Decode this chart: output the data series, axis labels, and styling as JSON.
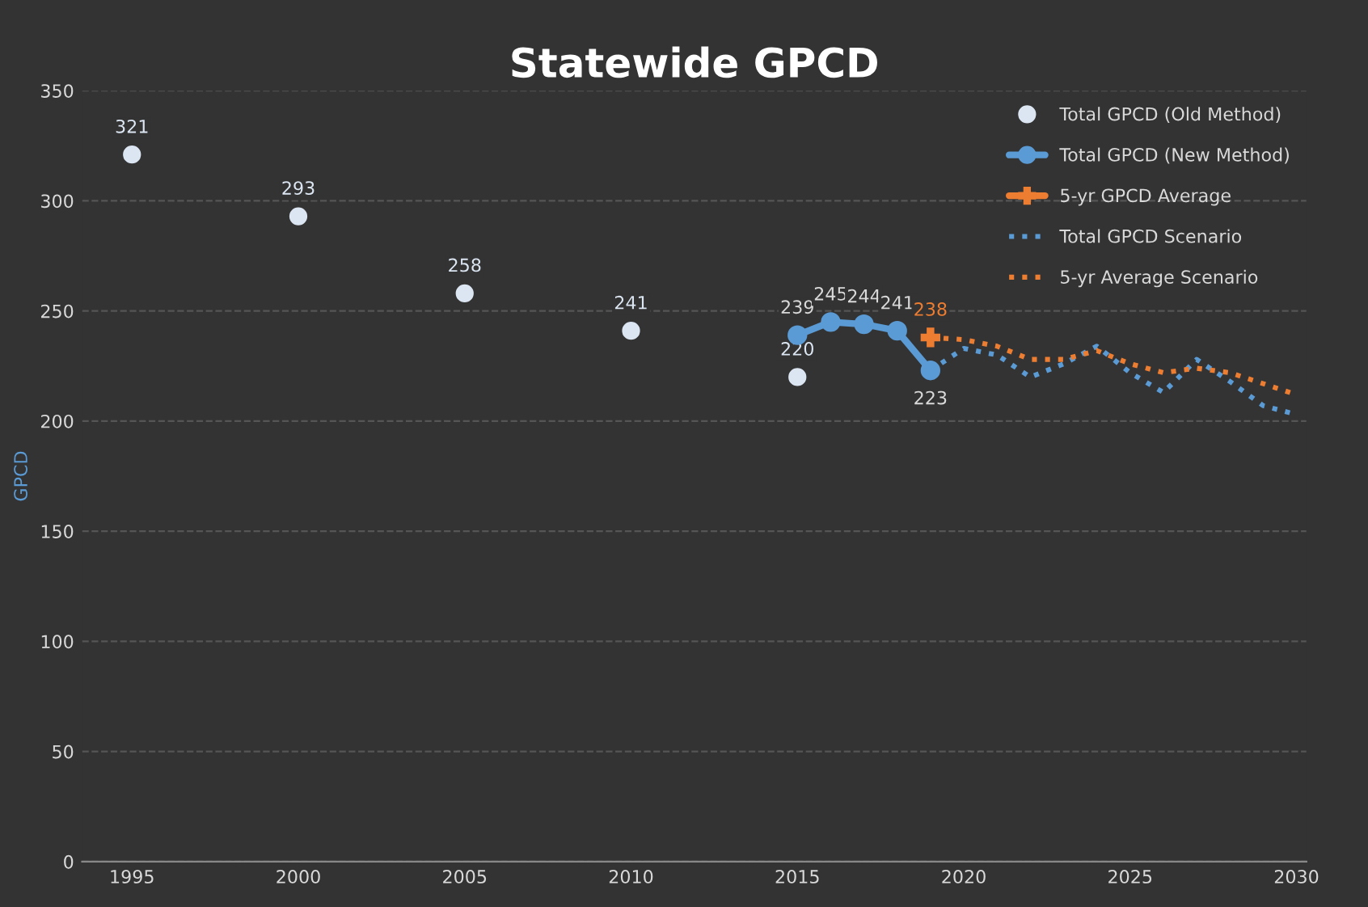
{
  "chart_data": {
    "type": "line",
    "title": "Statewide GPCD",
    "ylabel": "GPCD",
    "xlim": [
      1993.5,
      2030.3
    ],
    "xticks": [
      1995,
      2000,
      2005,
      2010,
      2015,
      2020,
      2025,
      2030
    ],
    "ylim": [
      0,
      350
    ],
    "yticks": [
      0,
      50,
      100,
      150,
      200,
      250,
      300,
      350
    ],
    "grid": "y",
    "legend": "top right",
    "series": [
      {
        "name": "Total GPCD (Old Method)",
        "type": "scatter",
        "color": "#dce6f2",
        "marker": "circle",
        "x": [
          1995,
          2000,
          2005,
          2010,
          2015
        ],
        "values": [
          321,
          293,
          258,
          241,
          220
        ],
        "value_labels": [
          "321",
          "293",
          "258",
          "241",
          "220"
        ]
      },
      {
        "name": "Total GPCD (New Method)",
        "color": "#5b9bd5",
        "marker": "circle",
        "line_style": "solid",
        "x": [
          2015,
          2016,
          2017,
          2018,
          2019
        ],
        "values": [
          239,
          245,
          244,
          241,
          223
        ],
        "value_labels": [
          "239",
          "245",
          "244",
          "241",
          "223"
        ]
      },
      {
        "name": "5-yr GPCD Average",
        "color": "#ed7d31",
        "marker": "cross",
        "line_style": "solid",
        "x": [
          2019
        ],
        "values": [
          238
        ],
        "value_labels": [
          "238"
        ]
      },
      {
        "name": "Total GPCD Scenario",
        "color": "#5b9bd5",
        "marker": "none",
        "line_style": "dotted",
        "x": [
          2019,
          2020,
          2021,
          2022,
          2023,
          2024,
          2025,
          2026,
          2027,
          2028,
          2029,
          2030
        ],
        "values": [
          223,
          233,
          230,
          220,
          226,
          234,
          222,
          213,
          228,
          218,
          207,
          203
        ]
      },
      {
        "name": "5-yr Average Scenario",
        "color": "#ed7d31",
        "marker": "none",
        "line_style": "dotted",
        "x": [
          2019,
          2020,
          2021,
          2022,
          2023,
          2024,
          2025,
          2026,
          2027,
          2028,
          2029,
          2030
        ],
        "values": [
          238,
          237,
          234,
          228,
          228,
          232,
          226,
          222,
          224,
          222,
          217,
          212
        ]
      }
    ]
  }
}
